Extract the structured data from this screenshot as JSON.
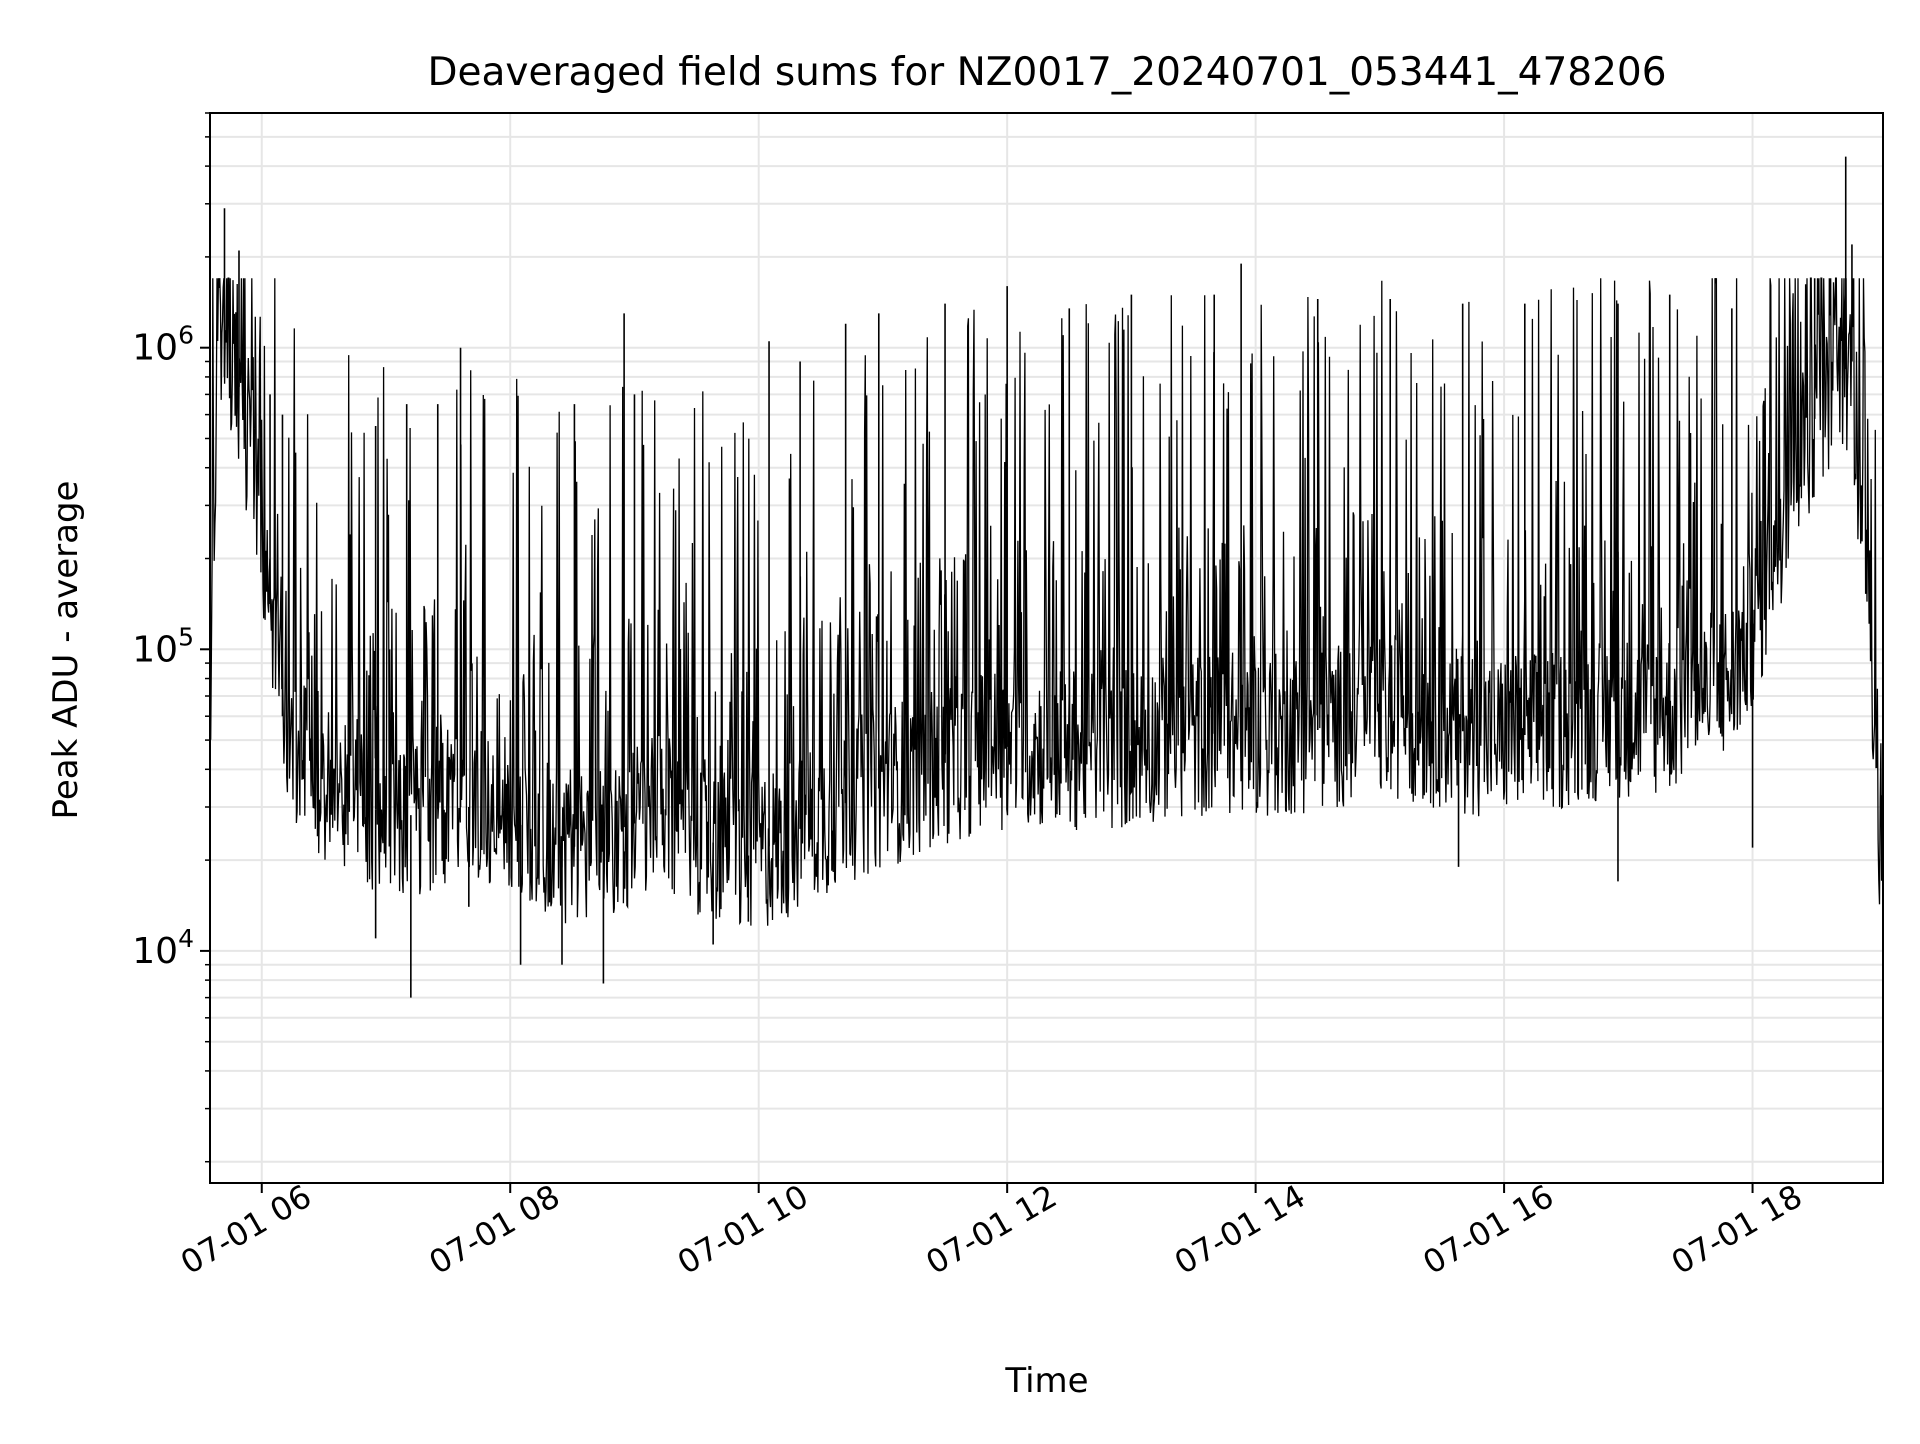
{
  "colors": {
    "line": "#000000",
    "grid": "#e6e6e6",
    "axes": "#000000",
    "background": "#ffffff"
  },
  "chart_data": {
    "type": "line",
    "title": "Deaveraged field sums for NZ0017_20240701_053441_478206",
    "xlabel": "Time",
    "ylabel": "Peak ADU - average",
    "yscale": "log",
    "grid": true,
    "xlim": [
      "2024-07-01T05:35",
      "2024-07-01T19:03"
    ],
    "ylim": [
      1700,
      6000000
    ],
    "x_ticks": [
      {
        "value": "2024-07-01T06:00",
        "label": "07-01 06"
      },
      {
        "value": "2024-07-01T08:00",
        "label": "07-01 08"
      },
      {
        "value": "2024-07-01T10:00",
        "label": "07-01 10"
      },
      {
        "value": "2024-07-01T12:00",
        "label": "07-01 12"
      },
      {
        "value": "2024-07-01T14:00",
        "label": "07-01 14"
      },
      {
        "value": "2024-07-01T16:00",
        "label": "07-01 16"
      },
      {
        "value": "2024-07-01T18:00",
        "label": "07-01 18"
      }
    ],
    "y_ticks": [
      {
        "value": 10000,
        "base": "10",
        "exp": "4"
      },
      {
        "value": 100000,
        "base": "10",
        "exp": "5"
      },
      {
        "value": 1000000,
        "base": "10",
        "exp": "6"
      }
    ],
    "series": [
      {
        "values": [
          [
            "2024-07-01T05:35",
            70000
          ],
          [
            "2024-07-01T05:39",
            1200000
          ],
          [
            "2024-07-01T05:43",
            700000
          ],
          [
            "2024-07-01T05:47",
            1100000
          ],
          [
            "2024-07-01T05:51",
            500000
          ],
          [
            "2024-07-01T05:55",
            600000
          ],
          [
            "2024-07-01T06:00",
            250000
          ],
          [
            "2024-07-01T06:10",
            60000
          ],
          [
            "2024-07-01T06:20",
            45000
          ],
          [
            "2024-07-01T06:35",
            35000
          ],
          [
            "2024-07-01T06:50",
            30000
          ],
          [
            "2024-07-01T07:10",
            28000
          ],
          [
            "2024-07-01T07:30",
            30000
          ],
          [
            "2024-07-01T07:50",
            30000
          ],
          [
            "2024-07-01T08:10",
            25000
          ],
          [
            "2024-07-01T08:30",
            22000
          ],
          [
            "2024-07-01T08:50",
            25000
          ],
          [
            "2024-07-01T09:10",
            28000
          ],
          [
            "2024-07-01T09:30",
            25000
          ],
          [
            "2024-07-01T09:50",
            20000
          ],
          [
            "2024-07-01T10:10",
            23000
          ],
          [
            "2024-07-01T10:30",
            28000
          ],
          [
            "2024-07-01T10:50",
            33000
          ],
          [
            "2024-07-01T11:10",
            37000
          ],
          [
            "2024-07-01T11:30",
            42000
          ],
          [
            "2024-07-01T11:50",
            47000
          ],
          [
            "2024-07-01T12:10",
            48000
          ],
          [
            "2024-07-01T12:30",
            47000
          ],
          [
            "2024-07-01T12:50",
            46000
          ],
          [
            "2024-07-01T13:10",
            50000
          ],
          [
            "2024-07-01T13:30",
            52000
          ],
          [
            "2024-07-01T13:50",
            53000
          ],
          [
            "2024-07-01T14:10",
            52000
          ],
          [
            "2024-07-01T14:30",
            54000
          ],
          [
            "2024-07-01T14:50",
            58000
          ],
          [
            "2024-07-01T15:10",
            60000
          ],
          [
            "2024-07-01T15:30",
            55000
          ],
          [
            "2024-07-01T15:50",
            52000
          ],
          [
            "2024-07-01T16:10",
            52000
          ],
          [
            "2024-07-01T16:30",
            55000
          ],
          [
            "2024-07-01T16:50",
            60000
          ],
          [
            "2024-07-01T17:10",
            60000
          ],
          [
            "2024-07-01T17:30",
            65000
          ],
          [
            "2024-07-01T17:50",
            80000
          ],
          [
            "2024-07-01T18:05",
            150000
          ],
          [
            "2024-07-01T18:20",
            400000
          ],
          [
            "2024-07-01T18:35",
            700000
          ],
          [
            "2024-07-01T18:48",
            900000
          ],
          [
            "2024-07-01T18:52",
            250000
          ],
          [
            "2024-07-01T18:56",
            220000
          ],
          [
            "2024-07-01T19:00",
            30000
          ],
          [
            "2024-07-01T19:03",
            9000
          ]
        ],
        "spikes": [
          [
            "2024-07-01T05:42",
            2900000
          ],
          [
            "2024-07-01T05:49",
            2100000
          ],
          [
            "2024-07-01T06:04",
            700000
          ],
          [
            "2024-07-01T06:10",
            600000
          ],
          [
            "2024-07-01T06:55",
            550000
          ],
          [
            "2024-07-01T07:10",
            650000
          ],
          [
            "2024-07-01T07:25",
            650000
          ],
          [
            "2024-07-01T07:36",
            1000000
          ],
          [
            "2024-07-01T08:31",
            650000
          ],
          [
            "2024-07-01T08:55",
            1300000
          ],
          [
            "2024-07-01T09:00",
            700000
          ],
          [
            "2024-07-01T10:05",
            1050000
          ],
          [
            "2024-07-01T10:20",
            900000
          ],
          [
            "2024-07-01T10:42",
            1200000
          ],
          [
            "2024-07-01T10:58",
            1300000
          ],
          [
            "2024-07-01T11:30",
            1400000
          ],
          [
            "2024-07-01T12:00",
            1600000
          ],
          [
            "2024-07-01T12:30",
            1350000
          ],
          [
            "2024-07-01T13:00",
            1500000
          ],
          [
            "2024-07-01T13:40",
            1500000
          ],
          [
            "2024-07-01T13:53",
            1900000
          ],
          [
            "2024-07-01T14:30",
            1450000
          ],
          [
            "2024-07-01T15:05",
            1450000
          ],
          [
            "2024-07-01T15:40",
            1400000
          ],
          [
            "2024-07-01T16:10",
            1400000
          ],
          [
            "2024-07-01T16:55",
            1400000
          ],
          [
            "2024-07-01T17:20",
            1500000
          ],
          [
            "2024-07-01T17:50",
            1350000
          ],
          [
            "2024-07-01T18:30",
            1700000
          ],
          [
            "2024-07-01T18:45",
            4300000
          ],
          [
            "2024-07-01T18:48",
            2200000
          ]
        ],
        "dips": [
          [
            "2024-07-01T06:55",
            11000
          ],
          [
            "2024-07-01T07:12",
            7000
          ],
          [
            "2024-07-01T07:40",
            14000
          ],
          [
            "2024-07-01T08:05",
            9000
          ],
          [
            "2024-07-01T08:25",
            9000
          ],
          [
            "2024-07-01T08:45",
            7800
          ],
          [
            "2024-07-01T09:38",
            10500
          ],
          [
            "2024-07-01T09:55",
            12500
          ],
          [
            "2024-07-01T15:38",
            19000
          ],
          [
            "2024-07-01T16:55",
            17000
          ],
          [
            "2024-07-01T18:00",
            22000
          ]
        ]
      }
    ]
  }
}
